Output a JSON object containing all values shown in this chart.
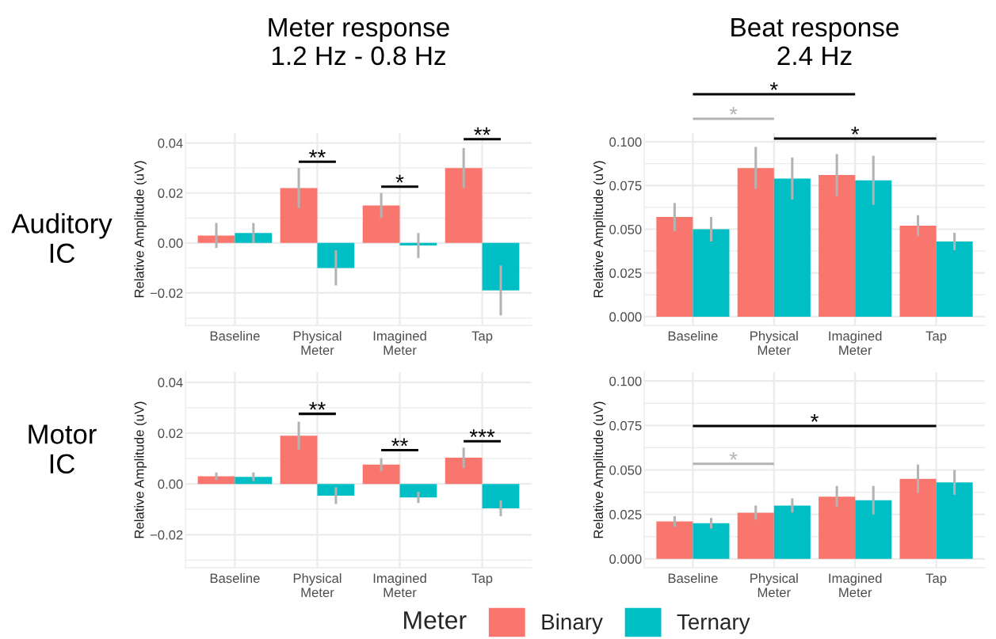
{
  "chart_data": [
    {
      "type": "bar",
      "title": "Meter response\n1.2 Hz - 0.8 Hz",
      "ylabel": "Relative Amplitude (uV)",
      "categories": [
        "Baseline",
        "Physical\nMeter",
        "Imagined\nMeter",
        "Tap"
      ],
      "series": [
        {
          "color": "#f8766d",
          "values": [
            0.003,
            0.022,
            0.015,
            0.03
          ],
          "errors": [
            0.005,
            0.008,
            0.005,
            0.008
          ]
        },
        {
          "color": "#00bfc4",
          "values": [
            0.004,
            -0.01,
            -0.001,
            -0.019
          ],
          "errors": [
            0.004,
            0.007,
            0.005,
            0.01
          ]
        }
      ],
      "ylim": [
        -0.033,
        0.044
      ],
      "yticks": [
        {
          "value": -0.02,
          "label": "−0.02"
        },
        {
          "value": 0,
          "label": "0.00"
        },
        0.02,
        0.04
      ],
      "grid": true,
      "annotations": [
        "Auditory\nIC",
        "**",
        "*",
        "**"
      ]
    },
    {
      "type": "bar",
      "title": "Beat response\n2.4 Hz",
      "ylabel": "Relative Amplitude (uV)",
      "categories": [
        "Baseline",
        "Physical\nMeter",
        "Imagined\nMeter",
        "Tap"
      ],
      "series": [
        {
          "color": "#f8766d",
          "values": [
            0.057,
            0.085,
            0.081,
            0.052
          ],
          "errors": [
            0.008,
            0.012,
            0.012,
            0.006
          ]
        },
        {
          "color": "#00bfc4",
          "values": [
            0.05,
            0.079,
            0.078,
            0.043
          ],
          "errors": [
            0.007,
            0.012,
            0.014,
            0.005
          ]
        }
      ],
      "ylim": [
        -0.005,
        0.105
      ],
      "yticks": [
        {
          "value": 0,
          "label": "0.000"
        },
        0.025,
        {
          "value": 0.05,
          "label": "0.050"
        },
        0.075,
        {
          "value": 0.1,
          "label": "0.100"
        }
      ],
      "grid": true,
      "annotations": [
        "*",
        "*",
        "*"
      ]
    },
    {
      "type": "bar",
      "ylabel": "Relative Amplitude (uV)",
      "categories": [
        "Baseline",
        "Physical\nMeter",
        "Imagined\nMeter",
        "Tap"
      ],
      "series": [
        {
          "color": "#f8766d",
          "values": [
            0.003,
            0.019,
            0.0076,
            0.0103
          ],
          "errors": [
            0.0015,
            0.0055,
            0.0026,
            0.004
          ]
        },
        {
          "color": "#00bfc4",
          "values": [
            0.0028,
            -0.0046,
            -0.0053,
            -0.0096
          ],
          "errors": [
            0.0017,
            0.0033,
            0.0022,
            0.0031
          ]
        }
      ],
      "ylim": [
        -0.033,
        0.044
      ],
      "yticks": [
        {
          "value": -0.02,
          "label": "−0.02"
        },
        {
          "value": 0,
          "label": "0.00"
        },
        0.02,
        0.04
      ],
      "grid": true,
      "annotations": [
        "Motor\nIC",
        "**",
        "**",
        "***"
      ]
    },
    {
      "type": "bar",
      "ylabel": "Relative Amplitude (uV)",
      "categories": [
        "Baseline",
        "Physical\nMeter",
        "Imagined\nMeter",
        "Tap"
      ],
      "series": [
        {
          "name": "Binary",
          "color": "#f8766d",
          "values": [
            0.021,
            0.026,
            0.035,
            0.045
          ],
          "errors": [
            0.003,
            0.004,
            0.006,
            0.008
          ]
        },
        {
          "name": "Ternary",
          "color": "#00bfc4",
          "values": [
            0.02,
            0.03,
            0.033,
            0.043
          ],
          "errors": [
            0.003,
            0.004,
            0.008,
            0.007
          ]
        }
      ],
      "ylim": [
        -0.005,
        0.105
      ],
      "yticks": [
        {
          "value": 0,
          "label": "0.000"
        },
        0.025,
        {
          "value": 0.05,
          "label": "0.050"
        },
        0.075,
        {
          "value": 0.1,
          "label": "0.100"
        }
      ],
      "grid": true,
      "annotations": [
        "*",
        "*"
      ],
      "legend": "bottom",
      "legend_title": "Meter"
    }
  ]
}
